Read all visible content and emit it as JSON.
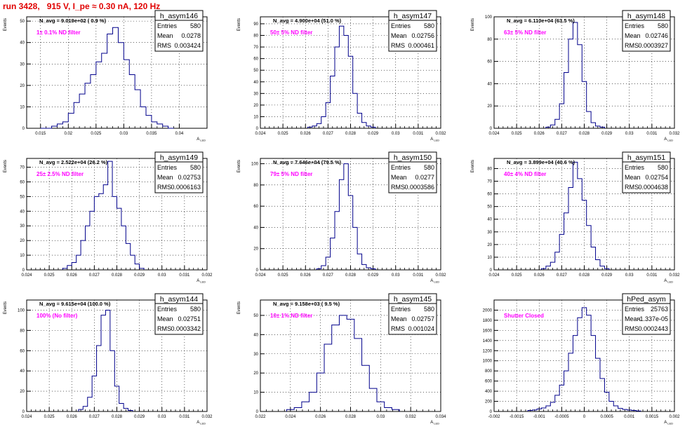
{
  "page": {
    "title": "run 3428,   915 V, I_pe ≈ 0.30 nA, 120 Hz"
  },
  "colors": {
    "hist_line": "#00008b",
    "annotation_magenta": "#ff00ff",
    "title_red": "#e00000",
    "grid": "#000000"
  },
  "stats_labels": {
    "entries": "Entries",
    "mean": "Mean",
    "rms": "RMS"
  },
  "chart_data": [
    {
      "type": "bar",
      "name": "h_asym146",
      "navg_text": "N_avg = 9.019e+02 ( 0.9 %)",
      "filter_text": "1± 0.1% ND filter",
      "stats": {
        "entries": "580",
        "mean": "0.0278",
        "rms": "0.003424"
      },
      "xlabel": "A_LED",
      "ylabel": "Events",
      "xlim": [
        0.0125,
        0.045
      ],
      "ylim": [
        0,
        52
      ],
      "xticks": [
        0.015,
        0.02,
        0.025,
        0.03,
        0.035,
        0.04
      ],
      "xtick_labels": [
        "0.015",
        "0.02",
        "0.025",
        "0.03",
        "0.035",
        "0.04"
      ],
      "yticks": [
        0,
        10,
        20,
        30,
        40,
        50
      ],
      "x": [
        0.0155,
        0.0165,
        0.0175,
        0.0185,
        0.0195,
        0.0205,
        0.0215,
        0.0225,
        0.0235,
        0.0245,
        0.0255,
        0.0265,
        0.0275,
        0.0285,
        0.0295,
        0.0305,
        0.0315,
        0.0325,
        0.0335,
        0.0345,
        0.0355,
        0.0365,
        0.0375,
        0.0385
      ],
      "values": [
        0,
        0,
        1,
        2,
        3,
        7,
        12,
        16,
        21,
        25,
        31,
        35,
        44,
        47,
        40,
        32,
        25,
        18,
        10,
        6,
        3,
        2,
        1,
        0
      ]
    },
    {
      "type": "bar",
      "name": "h_asym147",
      "navg_text": "N_avg = 4.900e+04 (51.0 %)",
      "filter_text": "50± 5% ND filter",
      "stats": {
        "entries": "580",
        "mean": "0.02756",
        "rms": "0.000461"
      },
      "xlabel": "A_LED",
      "ylabel": "Events",
      "xlim": [
        0.024,
        0.032
      ],
      "ylim": [
        0,
        96
      ],
      "xticks": [
        0.024,
        0.025,
        0.026,
        0.027,
        0.028,
        0.029,
        0.03,
        0.031,
        0.032
      ],
      "xtick_labels": [
        "0.024",
        "0.025",
        "0.026",
        "0.027",
        "0.028",
        "0.029",
        "0.03",
        "0.031",
        "0.032"
      ],
      "yticks": [
        0,
        10,
        20,
        30,
        40,
        50,
        60,
        70,
        80,
        90
      ],
      "x": [
        0.0262,
        0.0264,
        0.0266,
        0.0268,
        0.027,
        0.0272,
        0.0274,
        0.0276,
        0.0278,
        0.028,
        0.0282,
        0.0284,
        0.0286,
        0.0288,
        0.029
      ],
      "values": [
        1,
        2,
        4,
        10,
        22,
        45,
        70,
        88,
        80,
        62,
        30,
        13,
        5,
        2,
        1
      ]
    },
    {
      "type": "bar",
      "name": "h_asym148",
      "navg_text": "N_avg = 6.110e+04 (63.5 %)",
      "filter_text": "63± 5% ND filter",
      "stats": {
        "entries": "580",
        "mean": "0.02746",
        "rms": "0.0003927"
      },
      "xlabel": "A_LED",
      "ylabel": "Events",
      "xlim": [
        0.024,
        0.032
      ],
      "ylim": [
        0,
        100
      ],
      "xticks": [
        0.024,
        0.025,
        0.026,
        0.027,
        0.028,
        0.029,
        0.03,
        0.031,
        0.032
      ],
      "xtick_labels": [
        "0.024",
        "0.025",
        "0.026",
        "0.027",
        "0.028",
        "0.029",
        "0.03",
        "0.031",
        "0.032"
      ],
      "yticks": [
        0,
        20,
        40,
        60,
        80,
        100
      ],
      "x": [
        0.0264,
        0.0266,
        0.0268,
        0.027,
        0.0272,
        0.0274,
        0.0276,
        0.0278,
        0.028,
        0.0282,
        0.0284,
        0.0286,
        0.0288
      ],
      "values": [
        1,
        3,
        8,
        22,
        50,
        80,
        95,
        75,
        42,
        15,
        5,
        2,
        1
      ]
    },
    {
      "type": "bar",
      "name": "h_asym149",
      "navg_text": "N_avg = 2.522e+04 (26.2 %)",
      "filter_text": "25± 2.5% ND filter",
      "stats": {
        "entries": "580",
        "mean": "0.02753",
        "rms": "0.0006163"
      },
      "xlabel": "A_LED",
      "ylabel": "Events",
      "xlim": [
        0.024,
        0.032
      ],
      "ylim": [
        0,
        76
      ],
      "xticks": [
        0.024,
        0.025,
        0.026,
        0.027,
        0.028,
        0.029,
        0.03,
        0.031,
        0.032
      ],
      "xtick_labels": [
        "0.024",
        "0.025",
        "0.026",
        "0.027",
        "0.028",
        "0.029",
        "0.03",
        "0.031",
        "0.032"
      ],
      "yticks": [
        0,
        10,
        20,
        30,
        40,
        50,
        60,
        70
      ],
      "x": [
        0.0257,
        0.0259,
        0.0261,
        0.0263,
        0.0265,
        0.0267,
        0.0269,
        0.0271,
        0.0273,
        0.0275,
        0.0277,
        0.0279,
        0.0281,
        0.0283,
        0.0285,
        0.0287,
        0.0289,
        0.0291
      ],
      "values": [
        1,
        3,
        5,
        10,
        20,
        30,
        40,
        50,
        52,
        58,
        74,
        50,
        42,
        30,
        18,
        10,
        4,
        1
      ]
    },
    {
      "type": "bar",
      "name": "h_asym150",
      "navg_text": "N_avg = 7.646e+04 (79.5 %)",
      "filter_text": "79± 5% ND filter",
      "stats": {
        "entries": "580",
        "mean": "0.0277",
        "rms": "0.0003586"
      },
      "xlabel": "A_LED",
      "ylabel": "Events",
      "xlim": [
        0.024,
        0.032
      ],
      "ylim": [
        0,
        105
      ],
      "xticks": [
        0.024,
        0.025,
        0.026,
        0.027,
        0.028,
        0.029,
        0.03,
        0.031,
        0.032
      ],
      "xtick_labels": [
        "0.024",
        "0.025",
        "0.026",
        "0.027",
        "0.028",
        "0.029",
        "0.03",
        "0.031",
        "0.032"
      ],
      "yticks": [
        0,
        20,
        40,
        60,
        80,
        100
      ],
      "x": [
        0.0266,
        0.0268,
        0.027,
        0.0272,
        0.0274,
        0.0276,
        0.0278,
        0.028,
        0.0282,
        0.0284,
        0.0286,
        0.0288,
        0.029
      ],
      "values": [
        1,
        4,
        12,
        30,
        55,
        85,
        100,
        70,
        40,
        15,
        5,
        2,
        1
      ]
    },
    {
      "type": "bar",
      "name": "h_asym151",
      "navg_text": "N_avg = 3.899e+04 (40.6 %)",
      "filter_text": "40± 4% ND filter",
      "stats": {
        "entries": "580",
        "mean": "0.02754",
        "rms": "0.0004638"
      },
      "xlabel": "A_LED",
      "ylabel": "Events",
      "xlim": [
        0.024,
        0.032
      ],
      "ylim": [
        0,
        88
      ],
      "xticks": [
        0.024,
        0.025,
        0.026,
        0.027,
        0.028,
        0.029,
        0.03,
        0.031,
        0.032
      ],
      "xtick_labels": [
        "0.024",
        "0.025",
        "0.026",
        "0.027",
        "0.028",
        "0.029",
        "0.03",
        "0.031",
        "0.032"
      ],
      "yticks": [
        0,
        10,
        20,
        30,
        40,
        50,
        60,
        70,
        80
      ],
      "x": [
        0.0262,
        0.0264,
        0.0266,
        0.0268,
        0.027,
        0.0272,
        0.0274,
        0.0276,
        0.0278,
        0.028,
        0.0282,
        0.0284,
        0.0286,
        0.0288,
        0.029
      ],
      "values": [
        1,
        3,
        6,
        14,
        28,
        45,
        65,
        85,
        72,
        55,
        35,
        18,
        8,
        3,
        1
      ]
    },
    {
      "type": "bar",
      "name": "h_asym144",
      "navg_text": "N_avg = 9.615e+04 (100.0 %)",
      "filter_text": "100% (No filter)",
      "stats": {
        "entries": "580",
        "mean": "0.02751",
        "rms": "0.0003342"
      },
      "xlabel": "A_LED",
      "ylabel": "Events",
      "xlim": [
        0.024,
        0.032
      ],
      "ylim": [
        0,
        110
      ],
      "xticks": [
        0.024,
        0.025,
        0.026,
        0.027,
        0.028,
        0.029,
        0.03,
        0.031,
        0.032
      ],
      "xtick_labels": [
        "0.024",
        "0.025",
        "0.026",
        "0.027",
        "0.028",
        "0.029",
        "0.03",
        "0.031",
        "0.032"
      ],
      "yticks": [
        0,
        20,
        40,
        60,
        80,
        100
      ],
      "x": [
        0.0264,
        0.0266,
        0.0268,
        0.027,
        0.0272,
        0.0274,
        0.0276,
        0.0278,
        0.028,
        0.0282,
        0.0284,
        0.0286
      ],
      "values": [
        2,
        5,
        14,
        35,
        65,
        95,
        100,
        60,
        25,
        8,
        3,
        1
      ]
    },
    {
      "type": "bar",
      "name": "h_asym145",
      "navg_text": "N_avg = 9.158e+03 ( 9.5 %)",
      "filter_text": "10± 1% ND filter",
      "stats": {
        "entries": "580",
        "mean": "0.02757",
        "rms": "0.001024"
      },
      "xlabel": "A_LED",
      "ylabel": "Events",
      "xlim": [
        0.022,
        0.034
      ],
      "ylim": [
        0,
        58
      ],
      "xticks": [
        0.022,
        0.024,
        0.026,
        0.028,
        0.03,
        0.032,
        0.034
      ],
      "xtick_labels": [
        "0.022",
        "0.024",
        "0.026",
        "0.028",
        "0.03",
        "0.032",
        "0.034"
      ],
      "yticks": [
        0,
        10,
        20,
        30,
        40,
        50
      ],
      "x": [
        0.024,
        0.0245,
        0.025,
        0.0255,
        0.026,
        0.0265,
        0.027,
        0.0275,
        0.028,
        0.0285,
        0.029,
        0.0295,
        0.03,
        0.0305,
        0.031
      ],
      "values": [
        1,
        2,
        5,
        10,
        20,
        35,
        45,
        50,
        48,
        38,
        24,
        12,
        5,
        2,
        1
      ]
    },
    {
      "type": "bar",
      "name": "hPed_asym",
      "navg_text": "",
      "filter_text": "Shutter Closed",
      "stats": {
        "entries": "25763",
        "mean": "-1.337e-05",
        "rms": "0.0002443"
      },
      "xlabel": "A_LED",
      "ylabel": "",
      "xlim": [
        -0.002,
        0.002
      ],
      "ylim": [
        0,
        2200
      ],
      "xticks": [
        -0.002,
        -0.0015,
        -0.001,
        -0.0005,
        0,
        0.0005,
        0.001,
        0.0015,
        0.002
      ],
      "xtick_labels": [
        "-0.002",
        "-0.0015",
        "-0.001",
        "-0.0005",
        "0",
        "0.0005",
        "0.001",
        "0.0015",
        "0.002"
      ],
      "yticks": [
        0,
        200,
        400,
        600,
        800,
        1000,
        1200,
        1400,
        1600,
        1800,
        2000
      ],
      "x": [
        -0.0012,
        -0.0011,
        -0.001,
        -0.0009,
        -0.0008,
        -0.0007,
        -0.0006,
        -0.0005,
        -0.0004,
        -0.0003,
        -0.0002,
        -0.0001,
        0,
        0.0001,
        0.0002,
        0.0003,
        0.0004,
        0.0005,
        0.0006,
        0.0007,
        0.0008,
        0.0009,
        0.001,
        0.0011,
        0.0012
      ],
      "values": [
        20,
        30,
        50,
        70,
        110,
        180,
        320,
        520,
        800,
        1150,
        1500,
        1850,
        2050,
        1900,
        1500,
        1050,
        650,
        380,
        200,
        110,
        60,
        40,
        30,
        20,
        10
      ]
    }
  ]
}
